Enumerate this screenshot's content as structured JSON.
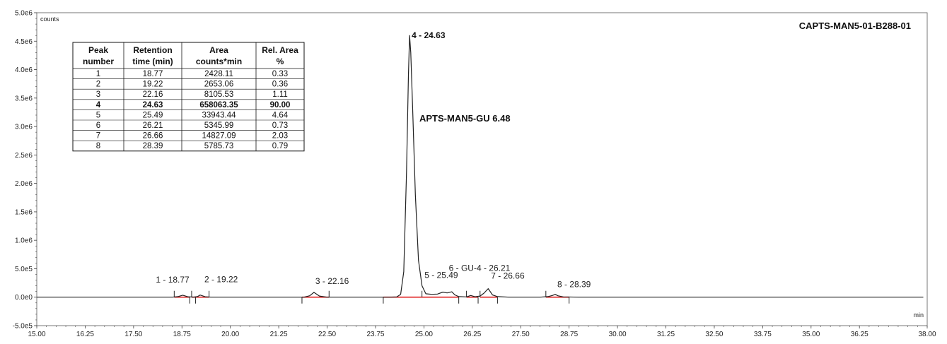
{
  "chart_data": {
    "type": "line",
    "title": "CAPTS-MAN5-01-B288-01",
    "xlabel": "min",
    "ylabel": "counts",
    "xlim": [
      15.0,
      38.0
    ],
    "ylim": [
      -500000,
      5000000
    ],
    "x_ticks": [
      "15.00",
      "16.25",
      "17.50",
      "18.75",
      "20.00",
      "21.25",
      "22.50",
      "23.75",
      "25.00",
      "26.25",
      "27.50",
      "28.75",
      "30.00",
      "31.25",
      "32.50",
      "33.75",
      "35.00",
      "36.25",
      "38.00"
    ],
    "x_tick_values": [
      15.0,
      16.25,
      17.5,
      18.75,
      20.0,
      21.25,
      22.5,
      23.75,
      25.0,
      26.25,
      27.5,
      28.75,
      30.0,
      31.25,
      32.5,
      33.75,
      35.0,
      36.25,
      38.0
    ],
    "y_ticks": [
      "-5.0e5",
      "0.0e0",
      "5.0e5",
      "1.0e6",
      "1.5e6",
      "2.0e6",
      "2.5e6",
      "3.0e6",
      "3.5e6",
      "4.0e6",
      "4.5e6",
      "5.0e6"
    ],
    "y_tick_values": [
      -500000,
      0,
      500000,
      1000000,
      1500000,
      2000000,
      2500000,
      3000000,
      3500000,
      4000000,
      4500000,
      5000000
    ],
    "grid": false,
    "series": [
      {
        "color": "#222222",
        "x": [
          15.0,
          16.0,
          17.0,
          18.0,
          18.5,
          18.65,
          18.77,
          18.9,
          19.05,
          19.15,
          19.22,
          19.35,
          19.5,
          20.5,
          21.5,
          21.9,
          22.05,
          22.16,
          22.3,
          22.5,
          23.5,
          24.1,
          24.3,
          24.4,
          24.48,
          24.55,
          24.6,
          24.63,
          24.66,
          24.71,
          24.78,
          24.86,
          24.95,
          25.05,
          25.2,
          25.35,
          25.49,
          25.6,
          25.72,
          25.8,
          25.9,
          26.1,
          26.21,
          26.32,
          26.45,
          26.55,
          26.66,
          26.77,
          26.9,
          27.2,
          27.5,
          28.0,
          28.2,
          28.32,
          28.39,
          28.46,
          28.6,
          29.0,
          30.0,
          31.0,
          32.0,
          33.0,
          34.0,
          35.0,
          36.0,
          37.0,
          37.9
        ],
        "y": [
          0,
          0,
          0,
          0,
          0,
          10000,
          35000,
          8000,
          2000,
          10000,
          38000,
          8000,
          0,
          0,
          0,
          0,
          25000,
          85000,
          20000,
          0,
          0,
          0,
          5000,
          50000,
          450000,
          2200000,
          3900000,
          4600000,
          4300000,
          3300000,
          1800000,
          650000,
          200000,
          60000,
          50000,
          55000,
          90000,
          75000,
          95000,
          40000,
          10000,
          5000,
          30000,
          8000,
          20000,
          70000,
          150000,
          40000,
          10000,
          0,
          0,
          0,
          10000,
          30000,
          50000,
          25000,
          5000,
          0,
          0,
          0,
          0,
          0,
          0,
          0,
          0,
          0,
          0
        ]
      }
    ],
    "peak_labels": [
      {
        "text": "1 - 18.77",
        "x": 18.77,
        "y": 35000
      },
      {
        "text": "2 - 19.22",
        "x": 19.22,
        "y": 38000
      },
      {
        "text": "3 - 22.16",
        "x": 22.16,
        "y": 85000
      },
      {
        "text": "4 - 24.63",
        "x": 24.63,
        "y": 4600000
      },
      {
        "text": "5 - 25.49",
        "x": 25.49,
        "y": 90000
      },
      {
        "text": "6 - GU-4 - 26.21",
        "x": 26.21,
        "y": 30000
      },
      {
        "text": "7 - 26.66",
        "x": 26.66,
        "y": 150000
      },
      {
        "text": "8 - 28.39",
        "x": 28.39,
        "y": 50000
      }
    ],
    "integration_baselines": [
      {
        "x": [
          18.55,
          18.95
        ]
      },
      {
        "x": [
          19.0,
          19.45
        ]
      },
      {
        "x": [
          21.85,
          22.55
        ]
      },
      {
        "x": [
          23.95,
          24.95
        ]
      },
      {
        "x": [
          24.95,
          25.9
        ]
      },
      {
        "x": [
          26.1,
          26.4
        ]
      },
      {
        "x": [
          26.45,
          26.9
        ]
      },
      {
        "x": [
          28.15,
          28.75
        ]
      }
    ],
    "integration_marks": [
      18.55,
      18.95,
      19.0,
      19.1,
      19.45,
      21.85,
      22.55,
      23.95,
      24.95,
      25.9,
      26.1,
      26.4,
      26.45,
      26.9,
      28.15,
      28.75
    ],
    "annotations": [
      {
        "text": "APTS-MAN5-GU 6.48",
        "x": 25.0,
        "y": 3050000
      }
    ]
  },
  "peak_table": {
    "headers": [
      [
        "Peak",
        "number"
      ],
      [
        "Retention",
        "time (min)"
      ],
      [
        "Area",
        "counts*min"
      ],
      [
        "Rel. Area",
        "%"
      ]
    ],
    "rows": [
      [
        "1",
        "18.77",
        "2428.11",
        "0.33"
      ],
      [
        "2",
        "19.22",
        "2653.06",
        "0.36"
      ],
      [
        "3",
        "22.16",
        "8105.53",
        "1.11"
      ],
      [
        "4",
        "24.63",
        "658063.35",
        "90.00"
      ],
      [
        "5",
        "25.49",
        "33943.44",
        "4.64"
      ],
      [
        "6",
        "26.21",
        "5345.99",
        "0.73"
      ],
      [
        "7",
        "26.66",
        "14827.09",
        "2.03"
      ],
      [
        "8",
        "28.39",
        "5785.73",
        "0.79"
      ]
    ],
    "bold_row": 3
  },
  "colors": {
    "trace": "#222222",
    "baseline": "#e02020",
    "axis": "#444444",
    "frame": "#555555"
  }
}
